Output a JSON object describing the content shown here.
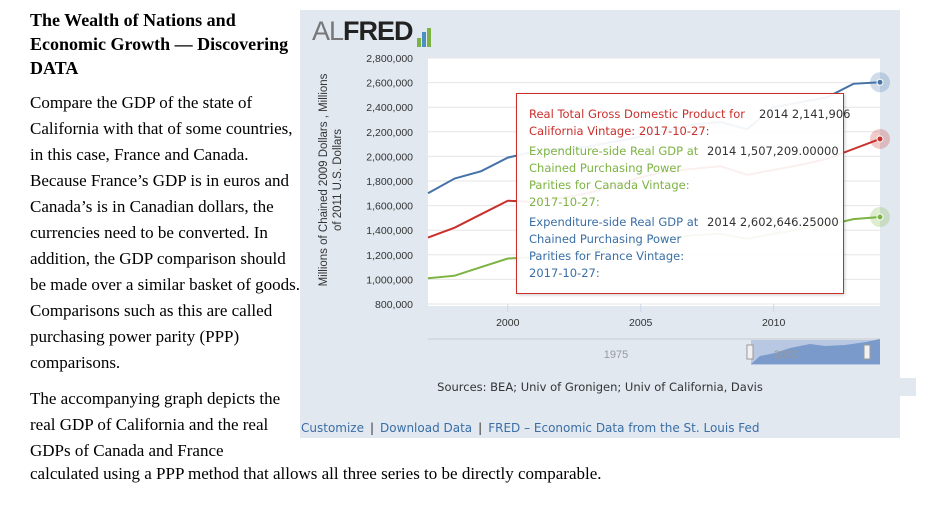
{
  "article": {
    "title": "The Wealth of Nations and Economic Growth — Discovering DATA",
    "para1": "Compare the GDP of the state of California with that of some countries, in this case, France and Canada. Because France’s GDP is in euros and Canada’s is in Canadian dollars, the currencies need to be converted. In addition, the GDP comparison should be made over a similar basket of goods. Comparisons such as this are called purchasing power parity (PPP) comparisons.",
    "para2": "The accompanying graph depicts the real GDP of California and the real GDPs of Canada and France",
    "para2_end": "calculated using a PPP method that allows all three series to be directly comparable."
  },
  "logo": {
    "al": "AL",
    "fred": "FRED"
  },
  "chart_data": {
    "type": "line",
    "ylabel": "Millions of Chained 2009 Dollars , Millions of 2011 U.S. Dollars",
    "ylim": [
      800000,
      2800000
    ],
    "yticks": [
      "2,800,000",
      "2,600,000",
      "2,400,000",
      "2,200,000",
      "2,000,000",
      "1,800,000",
      "1,600,000",
      "1,400,000",
      "1,200,000",
      "1,000,000",
      "800,000"
    ],
    "xlim": [
      1997,
      2014
    ],
    "xticks": [
      "2000",
      "2005",
      "2010"
    ],
    "x": [
      1997,
      1998,
      1999,
      2000,
      2001,
      2002,
      2003,
      2004,
      2005,
      2006,
      2007,
      2008,
      2009,
      2010,
      2011,
      2012,
      2013,
      2014
    ],
    "series": [
      {
        "name": "Expenditure-side Real GDP at Chained Purchasing Power Parities for France",
        "color": "#4572a7",
        "values": [
          1700000,
          1820000,
          1880000,
          1990000,
          2040000,
          2060000,
          2080000,
          2120000,
          2160000,
          2210000,
          2260000,
          2280000,
          2220000,
          2400000,
          2440000,
          2480000,
          2590000,
          2602646
        ]
      },
      {
        "name": "Real Total Gross Domestic Product for California",
        "color": "#c9302c",
        "values": [
          1340000,
          1420000,
          1530000,
          1640000,
          1630000,
          1660000,
          1700000,
          1760000,
          1830000,
          1880000,
          1900000,
          1920000,
          1850000,
          1890000,
          1930000,
          1980000,
          2060000,
          2141906
        ]
      },
      {
        "name": "Expenditure-side Real GDP at Chained Purchasing Power Parities for Canada",
        "color": "#7cb342",
        "values": [
          1010000,
          1030000,
          1100000,
          1170000,
          1180000,
          1210000,
          1230000,
          1270000,
          1300000,
          1330000,
          1360000,
          1370000,
          1330000,
          1370000,
          1410000,
          1440000,
          1490000,
          1507209
        ]
      }
    ],
    "navigator": {
      "labels": [
        "1975",
        "2000"
      ]
    }
  },
  "tooltip": [
    {
      "label": "Real Total Gross Domestic Product for California Vintage: 2017-10-27:",
      "value": "2014 2,141,906",
      "color": "#c9302c"
    },
    {
      "label": "Expenditure-side Real GDP at Chained Purchasing Power Parities for Canada Vintage: 2017-10-27:",
      "value": "2014 1,507,209.00000",
      "color": "#7cb342"
    },
    {
      "label": "Expenditure-side Real GDP at Chained Purchasing Power Parities for France Vintage: 2017-10-27:",
      "value": "2014 2,602,646.25000",
      "color": "#3a6ea5"
    }
  ],
  "sources": "Sources: BEA; Univ of Gronigen; Univ of California, Davis",
  "links": {
    "customize": "Customize",
    "download": "Download Data",
    "fred": "FRED – Economic Data from the St. Louis Fed"
  }
}
